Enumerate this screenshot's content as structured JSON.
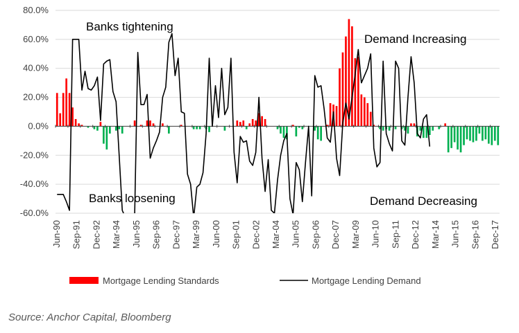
{
  "source": "Source: Anchor Capital, Bloomberg",
  "colors": {
    "standards": "#ff0000",
    "standards_negative": "#00b050",
    "demand": "#000000",
    "axis": "#404040"
  },
  "chart_data": {
    "type": "bar",
    "ylim": [
      -60,
      80
    ],
    "y_ticks": [
      "80.0%",
      "60.0%",
      "40.0%",
      "20.0%",
      "0.0%",
      "-20.0%",
      "-40.0%",
      "-60.0%"
    ],
    "y_tick_values": [
      80,
      60,
      40,
      20,
      0,
      -20,
      -40,
      -60
    ],
    "x_tick_labels": [
      "Jun-90",
      "Sep-91",
      "Dec-92",
      "Mar-94",
      "Jun-95",
      "Sep-96",
      "Dec-97",
      "Mar-99",
      "Jun-00",
      "Sep-01",
      "Dec-02",
      "Mar-04",
      "Jun-05",
      "Sep-06",
      "Dec-07",
      "Mar-09",
      "Jun-10",
      "Sep-11",
      "Dec-12",
      "Mar-14",
      "Jun-15",
      "Sep-16",
      "Dec-17"
    ],
    "x_start": "1990-Q2",
    "x_end": "2017-Q4",
    "annotations": [
      "Banks tightening",
      "Banks loosening",
      "Demand Increasing",
      "Demand Decreasing"
    ],
    "legend": {
      "standards": "Mortgage Lending Standards",
      "demand": "Mortgage Lending Demand"
    },
    "series": [
      {
        "name": "Mortgage Lending Standards",
        "type": "bar",
        "values": [
          23,
          9,
          23,
          33,
          23,
          13,
          5,
          2,
          1,
          0,
          -1,
          0,
          -2,
          -3,
          3,
          -12,
          -16,
          -5,
          0,
          -3,
          -2,
          -5,
          0,
          0,
          0,
          4,
          0,
          1,
          0,
          4,
          4,
          2,
          0,
          0,
          2,
          0,
          -5,
          0,
          0,
          0,
          1,
          0,
          0,
          0,
          -2,
          -2,
          -2,
          0,
          -2,
          -4,
          0,
          0,
          0,
          0,
          -3,
          0,
          0,
          0,
          4,
          3,
          4,
          -2,
          2,
          5,
          4,
          9,
          7,
          5,
          0,
          0,
          0,
          -2,
          -5,
          -8,
          -9,
          0,
          1,
          -7,
          -1,
          -2,
          0,
          0,
          0,
          -3,
          -9,
          -10,
          0,
          1,
          16,
          15,
          14,
          40,
          51,
          62,
          74,
          69,
          47,
          48,
          22,
          20,
          16,
          10,
          1,
          0,
          -2,
          -3,
          -2,
          -3,
          0,
          -2,
          0,
          -2,
          -3,
          -5,
          2,
          2,
          -7,
          -3,
          -8,
          -8,
          -6,
          -3,
          0,
          -2,
          0,
          2,
          -18,
          -15,
          -11,
          -16,
          -18,
          -13,
          -9,
          -10,
          -11,
          -10,
          -5,
          -10,
          -9,
          -12,
          -13,
          -10,
          -13
        ]
      },
      {
        "name": "Mortgage Lending Demand",
        "type": "line",
        "values": [
          -47,
          -47,
          -47,
          -52,
          -58,
          60,
          60,
          60,
          25,
          38,
          26,
          25,
          28,
          34,
          4,
          43,
          45,
          46,
          24,
          17,
          -20,
          -58,
          -63,
          -65,
          -66,
          -60,
          51,
          15,
          15,
          22,
          -22,
          -15,
          -10,
          -4,
          20,
          27,
          58,
          64,
          35,
          47,
          10,
          9,
          -33,
          -40,
          -63,
          -42,
          -40,
          -32,
          -5,
          47,
          0,
          28,
          6,
          40,
          8,
          13,
          47,
          -18,
          -39,
          -7,
          -11,
          -10,
          -24,
          -27,
          -18,
          20,
          -22,
          -45,
          -23,
          -58,
          -60,
          -37,
          -20,
          -10,
          -5,
          -50,
          -61,
          -25,
          -30,
          -52,
          -25,
          0,
          -48,
          35,
          27,
          28,
          12,
          -8,
          -11,
          10,
          -22,
          -34,
          2,
          16,
          5,
          20,
          36,
          53,
          30,
          35,
          40,
          50,
          -15,
          -28,
          -25,
          45,
          -5,
          -12,
          -17,
          45,
          40,
          -10,
          -13,
          20,
          48,
          30,
          -5,
          -8,
          5,
          8,
          -14
        ]
      }
    ]
  }
}
